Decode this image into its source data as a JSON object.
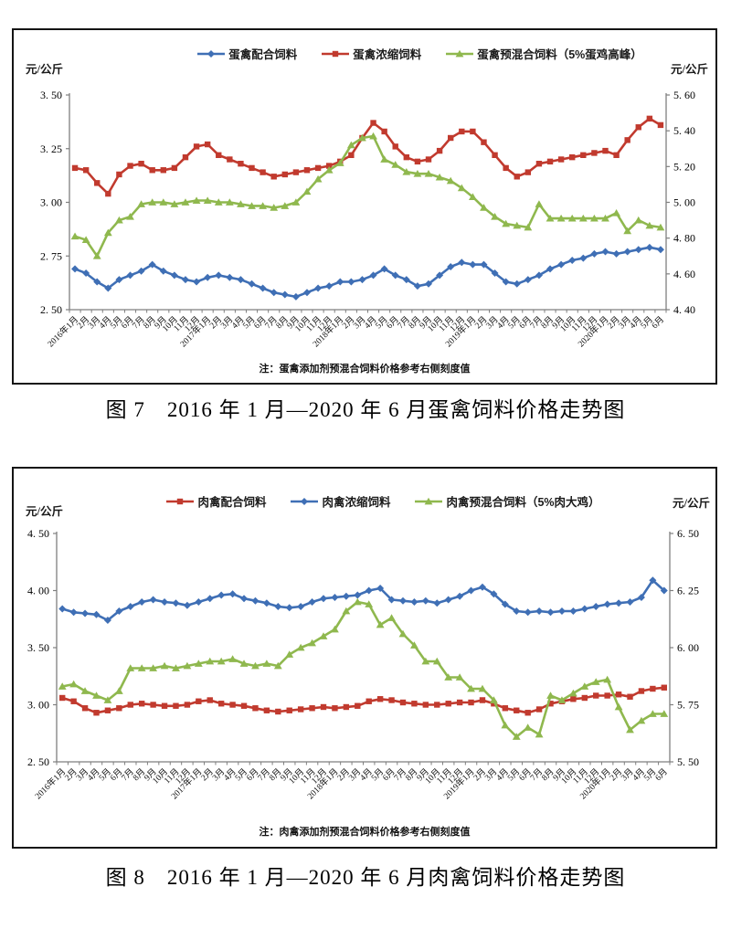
{
  "chart_data": [
    {
      "type": "line",
      "title": "图 7　2016 年 1 月—2020 年 6 月蛋禽饲料价格走势图",
      "note": "注：蛋禽添加剂预混合饲料价格参考右侧刻度值",
      "legend_position": "top",
      "grid": false,
      "left_axis": {
        "unit": "元/公斤",
        "min": 2.5,
        "max": 3.5,
        "tick_values": [
          3.5,
          3.25,
          3.0,
          2.75,
          2.5
        ],
        "tick_labels": [
          "3. 50",
          "3. 25",
          "3. 00",
          "2. 75",
          "2. 50"
        ]
      },
      "right_axis": {
        "unit": "元/公斤",
        "min": 4.4,
        "max": 5.6,
        "tick_values": [
          5.6,
          5.4,
          5.2,
          5.0,
          4.8,
          4.6,
          4.4
        ],
        "tick_labels": [
          "5. 60",
          "5. 40",
          "5. 20",
          "5. 00",
          "4. 80",
          "4. 60",
          "4. 40"
        ]
      },
      "categories": [
        "2016年1月",
        "2月",
        "3月",
        "4月",
        "5月",
        "6月",
        "7月",
        "8月",
        "9月",
        "10月",
        "11月",
        "12月",
        "2017年1月",
        "2月",
        "3月",
        "4月",
        "5月",
        "6月",
        "7月",
        "8月",
        "9月",
        "10月",
        "11月",
        "12月",
        "2018年1月",
        "2月",
        "3月",
        "4月",
        "5月",
        "6月",
        "7月",
        "8月",
        "9月",
        "10月",
        "11月",
        "12月",
        "2019年1月",
        "2月",
        "3月",
        "4月",
        "5月",
        "6月",
        "7月",
        "8月",
        "9月",
        "10月",
        "11月",
        "12月",
        "2020年1月",
        "2月",
        "3月",
        "4月",
        "5月",
        "6月"
      ],
      "series": [
        {
          "name": "蛋禽配合饲料",
          "axis": "left",
          "color": "#3F6FB5",
          "marker": "diamond",
          "values": [
            2.69,
            2.67,
            2.63,
            2.6,
            2.64,
            2.66,
            2.68,
            2.71,
            2.68,
            2.66,
            2.64,
            2.63,
            2.65,
            2.66,
            2.65,
            2.64,
            2.62,
            2.6,
            2.58,
            2.57,
            2.56,
            2.58,
            2.6,
            2.61,
            2.63,
            2.63,
            2.64,
            2.66,
            2.69,
            2.66,
            2.64,
            2.61,
            2.62,
            2.66,
            2.7,
            2.72,
            2.71,
            2.71,
            2.67,
            2.63,
            2.62,
            2.64,
            2.66,
            2.69,
            2.71,
            2.73,
            2.74,
            2.76,
            2.77,
            2.76,
            2.77,
            2.78,
            2.79,
            2.78
          ]
        },
        {
          "name": "蛋禽浓缩饲料",
          "axis": "left",
          "color": "#C13A2E",
          "marker": "square",
          "values": [
            3.16,
            3.15,
            3.09,
            3.04,
            3.13,
            3.17,
            3.18,
            3.15,
            3.15,
            3.16,
            3.21,
            3.26,
            3.27,
            3.22,
            3.2,
            3.18,
            3.16,
            3.14,
            3.12,
            3.13,
            3.14,
            3.15,
            3.16,
            3.17,
            3.19,
            3.22,
            3.3,
            3.37,
            3.33,
            3.26,
            3.21,
            3.19,
            3.2,
            3.24,
            3.3,
            3.33,
            3.33,
            3.28,
            3.22,
            3.16,
            3.12,
            3.14,
            3.18,
            3.19,
            3.2,
            3.21,
            3.22,
            3.23,
            3.24,
            3.22,
            3.29,
            3.35,
            3.39,
            3.36
          ]
        },
        {
          "name": "蛋禽预混合饲料（5%蛋鸡高峰）",
          "axis": "right",
          "color": "#8FB84E",
          "marker": "triangle",
          "values": [
            4.81,
            4.79,
            4.7,
            4.83,
            4.9,
            4.92,
            4.99,
            5.0,
            5.0,
            4.99,
            5.0,
            5.01,
            5.01,
            5.0,
            5.0,
            4.99,
            4.98,
            4.98,
            4.97,
            4.98,
            5.0,
            5.06,
            5.13,
            5.18,
            5.22,
            5.32,
            5.36,
            5.37,
            5.24,
            5.21,
            5.17,
            5.16,
            5.16,
            5.14,
            5.12,
            5.08,
            5.03,
            4.97,
            4.92,
            4.88,
            4.87,
            4.86,
            4.99,
            4.91,
            4.91,
            4.91,
            4.91,
            4.91,
            4.91,
            4.94,
            4.84,
            4.9,
            4.87,
            4.86
          ]
        }
      ]
    },
    {
      "type": "line",
      "title": "图 8　2016 年 1 月—2020 年 6 月肉禽饲料价格走势图",
      "note": "注：肉禽添加剂预混合饲料价格参考右侧刻度值",
      "legend_position": "top",
      "grid": false,
      "left_axis": {
        "unit": "元/公斤",
        "min": 2.5,
        "max": 4.5,
        "tick_values": [
          4.5,
          4.0,
          3.5,
          3.0,
          2.5
        ],
        "tick_labels": [
          "4. 50",
          "4. 00",
          "3. 50",
          "3. 00",
          "2. 50"
        ]
      },
      "right_axis": {
        "unit": "元/公斤",
        "min": 5.5,
        "max": 6.5,
        "tick_values": [
          6.5,
          6.25,
          6.0,
          5.75,
          5.5
        ],
        "tick_labels": [
          "6. 50",
          "6. 25",
          "6. 00",
          "5. 75",
          "5. 50"
        ]
      },
      "categories": [
        "2016年1月",
        "2月",
        "3月",
        "4月",
        "5月",
        "6月",
        "7月",
        "8月",
        "9月",
        "10月",
        "11月",
        "12月",
        "2017年1月",
        "2月",
        "3月",
        "4月",
        "5月",
        "6月",
        "7月",
        "8月",
        "9月",
        "10月",
        "11月",
        "12月",
        "2018年1月",
        "2月",
        "3月",
        "4月",
        "5月",
        "6月",
        "7月",
        "8月",
        "9月",
        "10月",
        "11月",
        "12月",
        "2019年1月",
        "2月",
        "3月",
        "4月",
        "5月",
        "6月",
        "7月",
        "8月",
        "9月",
        "10月",
        "11月",
        "12月",
        "2020年1月",
        "2月",
        "3月",
        "4月",
        "5月",
        "6月"
      ],
      "series": [
        {
          "name": "肉禽配合饲料",
          "axis": "left",
          "color": "#C13A2E",
          "marker": "square",
          "values": [
            3.06,
            3.03,
            2.97,
            2.93,
            2.95,
            2.97,
            3.0,
            3.01,
            3.0,
            2.99,
            2.99,
            3.0,
            3.03,
            3.04,
            3.01,
            3.0,
            2.99,
            2.97,
            2.95,
            2.94,
            2.95,
            2.96,
            2.97,
            2.98,
            2.97,
            2.98,
            2.99,
            3.03,
            3.05,
            3.04,
            3.02,
            3.01,
            3.0,
            3.0,
            3.01,
            3.02,
            3.02,
            3.04,
            3.01,
            2.97,
            2.95,
            2.93,
            2.96,
            3.01,
            3.03,
            3.05,
            3.06,
            3.08,
            3.08,
            3.09,
            3.07,
            3.12,
            3.14,
            3.15
          ]
        },
        {
          "name": "肉禽浓缩饲料",
          "axis": "left",
          "color": "#3F6FB5",
          "marker": "diamond",
          "values": [
            3.84,
            3.81,
            3.8,
            3.79,
            3.74,
            3.82,
            3.86,
            3.9,
            3.92,
            3.9,
            3.89,
            3.87,
            3.9,
            3.93,
            3.96,
            3.97,
            3.93,
            3.91,
            3.89,
            3.86,
            3.85,
            3.86,
            3.9,
            3.93,
            3.94,
            3.95,
            3.96,
            4.0,
            4.02,
            3.92,
            3.91,
            3.9,
            3.91,
            3.89,
            3.92,
            3.95,
            4.0,
            4.03,
            3.97,
            3.88,
            3.82,
            3.81,
            3.82,
            3.81,
            3.82,
            3.82,
            3.84,
            3.86,
            3.88,
            3.89,
            3.9,
            3.94,
            4.09,
            4.0
          ]
        },
        {
          "name": "肉禽预混合饲料（5%肉大鸡）",
          "axis": "right",
          "color": "#8FB84E",
          "marker": "triangle",
          "values": [
            5.83,
            5.84,
            5.81,
            5.79,
            5.77,
            5.81,
            5.91,
            5.91,
            5.91,
            5.92,
            5.91,
            5.92,
            5.93,
            5.94,
            5.94,
            5.95,
            5.93,
            5.92,
            5.93,
            5.92,
            5.97,
            6.0,
            6.02,
            6.05,
            6.08,
            6.16,
            6.2,
            6.19,
            6.1,
            6.13,
            6.06,
            6.01,
            5.94,
            5.94,
            5.87,
            5.87,
            5.82,
            5.82,
            5.77,
            5.66,
            5.61,
            5.65,
            5.62,
            5.79,
            5.77,
            5.8,
            5.83,
            5.85,
            5.86,
            5.74,
            5.64,
            5.68,
            5.71,
            5.71
          ]
        }
      ]
    }
  ]
}
